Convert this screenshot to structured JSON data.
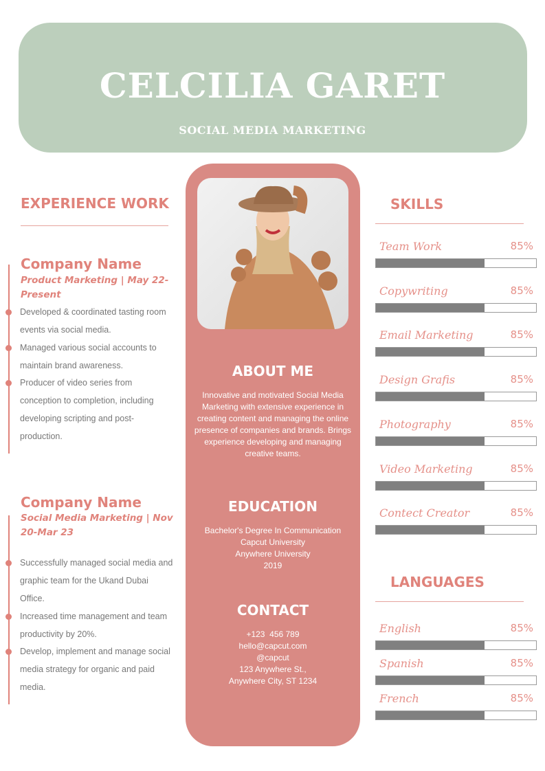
{
  "header": {
    "name": "CELCILIA GARET",
    "role": "SOCIAL MEDIA MARKETING"
  },
  "experience": {
    "title": "EXPERIENCE WORK",
    "jobs": [
      {
        "company": "Company Name",
        "title": "Product Marketing | May 22-Present",
        "bullets": [
          "Developed & coordinated tasting room events via social media.",
          "Managed various social accounts to maintain brand awareness.",
          "Producer of video series from conception to completion, including developing scripting and post-production."
        ]
      },
      {
        "company": "Company Name",
        "title": "Social Media Marketing | Nov 20-Mar 23",
        "bullets": [
          "Successfully managed social media and graphic team for the Ukand Dubai Office.",
          "Increased time management and team productivity by 20%.",
          "Develop, implement and manage social media strategy for organic and paid media."
        ]
      }
    ]
  },
  "about": {
    "title": "ABOUT ME",
    "text": "Innovative and motivated Social Media Marketing with extensive experience in creating content and managing the online presence of companies and brands. Brings experience developing and managing creative teams."
  },
  "education": {
    "title": "EDUCATION",
    "lines": [
      "Bachelor's Degree In Communication",
      "Capcut University",
      "Anywhere University",
      "2019"
    ]
  },
  "contact": {
    "title": "CONTACT",
    "lines": [
      "+123  456 789",
      "hello@capcut.com",
      "@capcut",
      "123 Anywhere St.,",
      "Anywhere City, ST 1234"
    ]
  },
  "skills": {
    "title": "SKILLS",
    "items": [
      {
        "label": "Team Work",
        "pct": "85%",
        "fill": 68
      },
      {
        "label": "Copywriting",
        "pct": "85%",
        "fill": 68
      },
      {
        "label": "Email Marketing",
        "pct": "85%",
        "fill": 68
      },
      {
        "label": "Design Grafis",
        "pct": "85%",
        "fill": 68
      },
      {
        "label": "Photography",
        "pct": "85%",
        "fill": 68
      },
      {
        "label": "Video Marketing",
        "pct": "85%",
        "fill": 68
      },
      {
        "label": "Contect Creator",
        "pct": "85%",
        "fill": 68
      }
    ]
  },
  "languages": {
    "title": "LANGUAGES",
    "items": [
      {
        "label": "English",
        "pct": "85%",
        "fill": 68
      },
      {
        "label": "Spanish",
        "pct": "85%",
        "fill": 68
      },
      {
        "label": "French",
        "pct": "85%",
        "fill": 68
      }
    ]
  },
  "colors": {
    "header_bg": "#bccfbc",
    "accent": "#e0837b",
    "card": "#d98a84",
    "bar_fill": "#808080"
  }
}
